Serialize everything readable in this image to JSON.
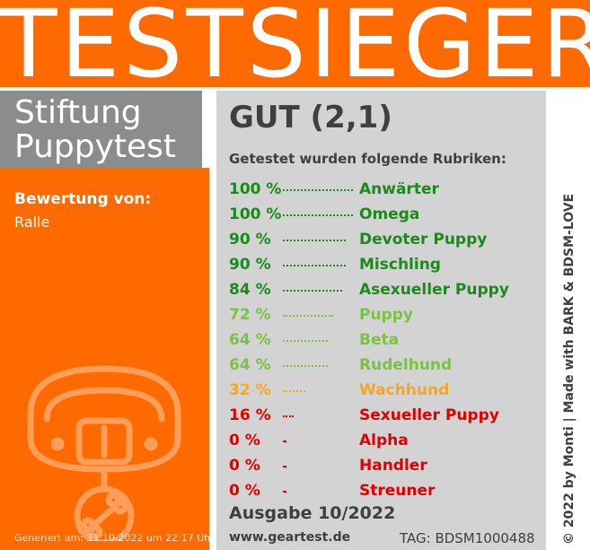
{
  "banner": {
    "title": "TESTSIEGER"
  },
  "org": {
    "line1": "Stiftung",
    "line2": "Puppytest"
  },
  "rating": {
    "label": "Bewertung von:",
    "name": "Ralle"
  },
  "generated": "Generiert am: 31.10.2022 um 22:17 Uhr",
  "grade": "GUT (2,1)",
  "intro": "Getestet wurden folgende Rubriken:",
  "colors": {
    "orange": "#ff6a00",
    "gray_panel": "#d3d3d3",
    "gray_box": "#8c8c8c",
    "text_dark": "#3f3f3f",
    "dark_green": "#1a8a1a",
    "light_green": "#7cc242",
    "amber": "#f5a623",
    "red": "#e00000"
  },
  "rubrics": [
    {
      "percent": "100 %",
      "name": "Anwärter",
      "value": 100,
      "color": "#1a8a1a"
    },
    {
      "percent": "100 %",
      "name": "Omega",
      "value": 100,
      "color": "#1a8a1a"
    },
    {
      "percent": "90 %",
      "name": "Devoter Puppy",
      "value": 90,
      "color": "#1a8a1a"
    },
    {
      "percent": "90 %",
      "name": "Mischling",
      "value": 90,
      "color": "#1a8a1a"
    },
    {
      "percent": "84 %",
      "name": "Asexueller Puppy",
      "value": 84,
      "color": "#1a8a1a"
    },
    {
      "percent": "72 %",
      "name": "Puppy",
      "value": 72,
      "color": "#7cc242"
    },
    {
      "percent": "64 %",
      "name": "Beta",
      "value": 64,
      "color": "#7cc242"
    },
    {
      "percent": "64 %",
      "name": "Rudelhund",
      "value": 64,
      "color": "#7cc242"
    },
    {
      "percent": "32 %",
      "name": "Wachhund",
      "value": 32,
      "color": "#f5a623"
    },
    {
      "percent": "16 %",
      "name": "Sexueller Puppy",
      "value": 16,
      "color": "#e00000"
    },
    {
      "percent": "0 %",
      "name": "Alpha",
      "value": 0,
      "color": "#e00000"
    },
    {
      "percent": "0 %",
      "name": "Handler",
      "value": 0,
      "color": "#e00000"
    },
    {
      "percent": "0 %",
      "name": "Streuner",
      "value": 0,
      "color": "#e00000"
    }
  ],
  "edition": "Ausgabe 10/2022",
  "website": "www.geartest.de",
  "tag": "TAG: BDSM1000488",
  "credit": "© 2022 by Monti | Made with BARK & BDSM-LOVE",
  "icons": {
    "illustration": "dog-collar-with-bone-tag-icon"
  }
}
